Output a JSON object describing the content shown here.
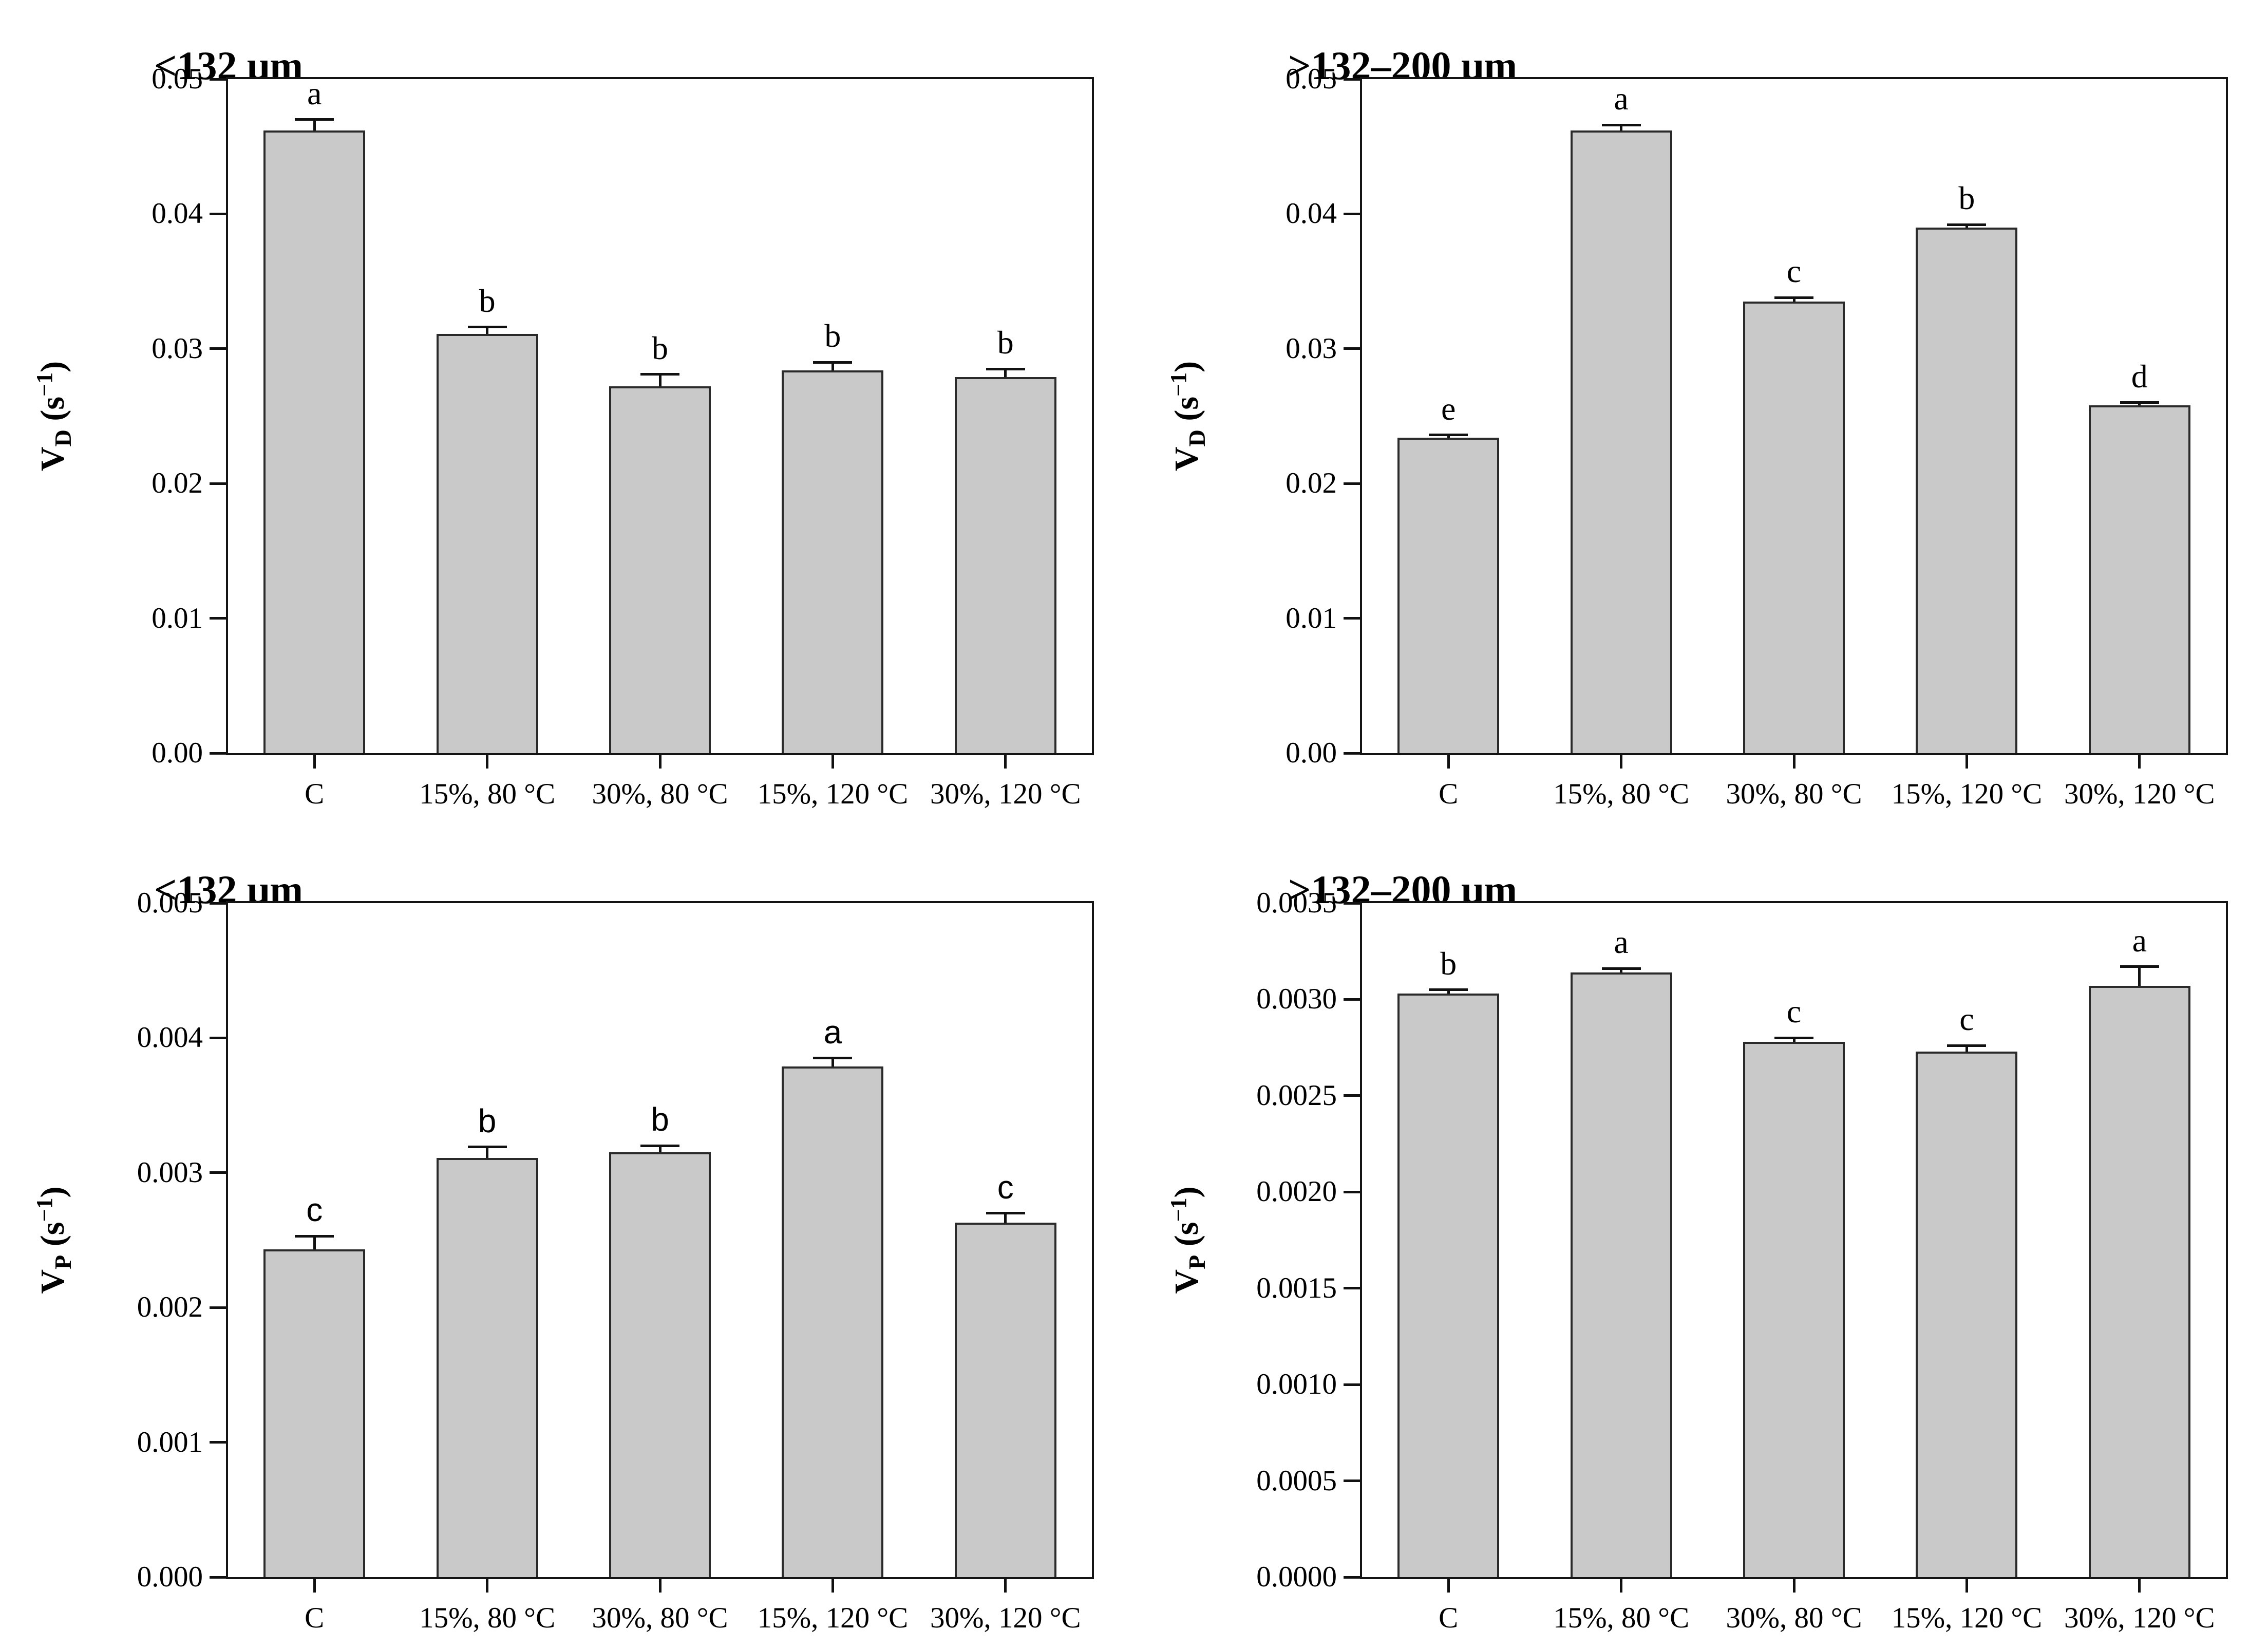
{
  "figure": {
    "background": "#ffffff",
    "bar_fill": "#c9c9c9",
    "bar_stroke": "#2a2a2a",
    "axis_color": "#141414"
  },
  "chart_data": [
    {
      "id": "vd-fine",
      "type": "bar",
      "title": "<132 μm",
      "ylabel": {
        "base": "V",
        "sub": "D",
        "unit_open": "(s",
        "exponent": "−1",
        "unit_close": ")"
      },
      "categories": [
        "C",
        "15%, 80 °C",
        "30%, 80 °C",
        "15%, 120 °C",
        "30%, 120 °C"
      ],
      "values": [
        0.0462,
        0.0311,
        0.0272,
        0.0284,
        0.0279
      ],
      "errors": [
        0.0008,
        0.0005,
        0.0009,
        0.0006,
        0.0006
      ],
      "letters": [
        "a",
        "b",
        "b",
        "b",
        "b"
      ],
      "ylim": [
        0,
        0.05
      ],
      "yticks": [
        "0.00",
        "0.01",
        "0.02",
        "0.03",
        "0.04",
        "0.05"
      ],
      "grid": "off",
      "legend": "none"
    },
    {
      "id": "vd-coarse",
      "type": "bar",
      "title": ">132–200 μm",
      "ylabel": {
        "base": "V",
        "sub": "D",
        "unit_open": "(s",
        "exponent": "−1",
        "unit_close": ")"
      },
      "categories": [
        "C",
        "15%, 80 °C",
        "30%, 80 °C",
        "15%, 120 °C",
        "30%, 120 °C"
      ],
      "values": [
        0.0234,
        0.0462,
        0.0335,
        0.039,
        0.0258
      ],
      "errors": [
        0.0002,
        0.0004,
        0.0003,
        0.0002,
        0.0002
      ],
      "letters": [
        "e",
        "a",
        "c",
        "b",
        "d"
      ],
      "ylim": [
        0,
        0.05
      ],
      "yticks": [
        "0.00",
        "0.01",
        "0.02",
        "0.03",
        "0.04",
        "0.05"
      ],
      "grid": "off",
      "legend": "none"
    },
    {
      "id": "vp-fine",
      "type": "bar",
      "title": "<132 μm",
      "ylabel": {
        "base": "V",
        "sub": "P",
        "unit_open": "(s",
        "exponent": "−1",
        "unit_close": ")"
      },
      "categories": [
        "C",
        "15%, 80 °C",
        "30%, 80 °C",
        "15%, 120 °C",
        "30%, 120 °C"
      ],
      "values": [
        0.00243,
        0.00311,
        0.00315,
        0.00379,
        0.00263
      ],
      "errors": [
        0.0001,
        8e-05,
        5e-05,
        6e-05,
        7e-05
      ],
      "letters": [
        "c",
        "b",
        "b",
        "a",
        "c"
      ],
      "ylim": [
        0,
        0.005
      ],
      "yticks": [
        "0.000",
        "0.001",
        "0.002",
        "0.003",
        "0.004",
        "0.005"
      ],
      "grid": "off",
      "legend": "none"
    },
    {
      "id": "vp-coarse",
      "type": "bar",
      "title": ">132–200 μm",
      "ylabel": {
        "base": "V",
        "sub": "P",
        "unit_open": "(s",
        "exponent": "−1",
        "unit_close": ")"
      },
      "categories": [
        "C",
        "15%, 80 °C",
        "30%, 80 °C",
        "15%, 120 °C",
        "30%, 120 °C"
      ],
      "values": [
        0.00303,
        0.00314,
        0.00278,
        0.00273,
        0.00307
      ],
      "errors": [
        2e-05,
        2e-05,
        2e-05,
        3e-05,
        0.0001
      ],
      "letters": [
        "b",
        "a",
        "c",
        "c",
        "a"
      ],
      "ylim": [
        0,
        0.0035
      ],
      "yticks": [
        "0.0000",
        "0.0005",
        "0.0010",
        "0.0015",
        "0.0020",
        "0.0025",
        "0.0030",
        "0.0035"
      ],
      "grid": "off",
      "legend": "none"
    }
  ]
}
